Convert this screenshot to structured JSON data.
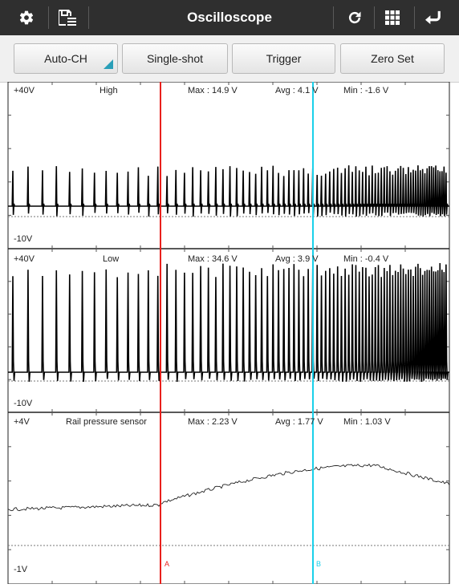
{
  "toolbar": {
    "title": "Oscilloscope",
    "left_icons": [
      "gear-icon",
      "save-list-icon"
    ],
    "right_icons": [
      "refresh-icon",
      "grid-icon",
      "back-icon"
    ]
  },
  "buttons": {
    "auto_ch": "Auto-CH",
    "single_shot": "Single-shot",
    "trigger": "Trigger",
    "zero_set": "Zero Set"
  },
  "channels": [
    {
      "top_label": "+40V",
      "bottom_label": "-10V",
      "name": "High",
      "max": "Max : 14.9 V",
      "avg": "Avg : 4.1 V",
      "min": "Min : -1.6 V"
    },
    {
      "top_label": "+40V",
      "bottom_label": "-10V",
      "name": "Low",
      "max": "Max : 34.6 V",
      "avg": "Avg : 3.9 V",
      "min": "Min : -0.4 V"
    },
    {
      "top_label": "+4V",
      "bottom_label": "-1V",
      "name": "Rail pressure sensor",
      "max": "Max : 2.23 V",
      "avg": "Avg : 1.77 V",
      "min": "Min : 1.03 V"
    }
  ],
  "cursors": {
    "a": {
      "label": "A",
      "color": "#e8201c"
    },
    "b": {
      "label": "B",
      "color": "#19d0ea"
    }
  },
  "colors": {
    "toolbar_bg": "#2f2f2f",
    "accent": "#2a9fb8",
    "trace": "#000000"
  }
}
